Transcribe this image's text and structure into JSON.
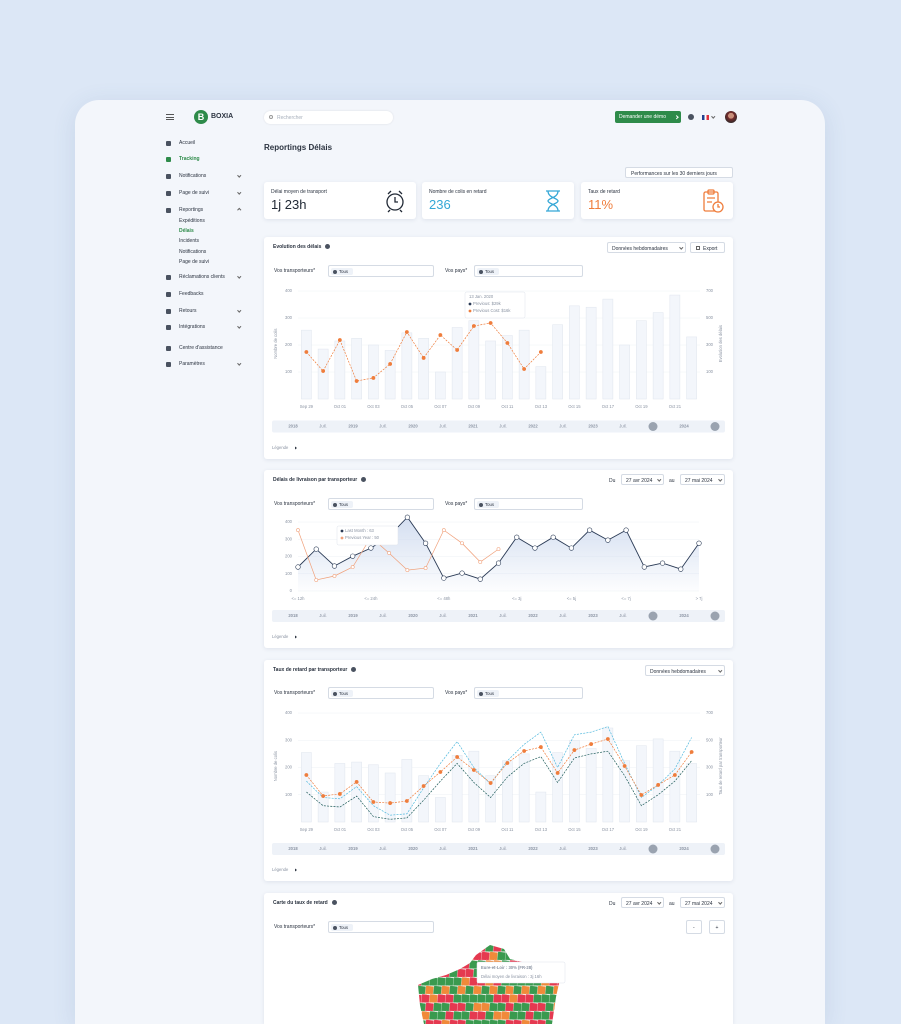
{
  "header": {
    "logo_letter": "B",
    "brand": "BOXIA",
    "search_placeholder": "Rechercher",
    "demo_button": "Demander une démo"
  },
  "sidebar": {
    "items": [
      "Accueil",
      "Tracking",
      "Notifications",
      "Page de suivi",
      "Reportings",
      "Réclamations clients",
      "Feedbacks",
      "Retours",
      "Intégrations",
      "Centre d'assistance",
      "Paramètres"
    ],
    "sub_items": [
      "Expéditions",
      "Délais",
      "Incidents",
      "Notifications",
      "Page de suivi"
    ]
  },
  "page": {
    "title": "Reportings Délais",
    "period": "Performances sur les 30 derniers jours"
  },
  "kpis": [
    {
      "label": "Délai moyen de transport",
      "value": "1j 23h",
      "color": "#222a36"
    },
    {
      "label": "Nombre de colis en retard",
      "value": "236",
      "color": "#35a7d6"
    },
    {
      "label": "Taux de retard",
      "value": "11%",
      "color": "#ef7d3c"
    }
  ],
  "filters": {
    "carriers_label": "Vos transporteurs*",
    "countries_label": "Vos pays*",
    "all": "Tous"
  },
  "controls": {
    "weekly": "Données hebdomadaires",
    "export": "Export",
    "legend": "Légende",
    "from": "Du",
    "to": "au",
    "date_from": "27 avr 2024",
    "date_to": "27 mai 2024"
  },
  "timeline": [
    "2018",
    "Juil.",
    "2019",
    "Juil.",
    "2020",
    "Juil.",
    "2021",
    "Juil.",
    "2022",
    "Juil.",
    "2023",
    "Juil.",
    "2024"
  ],
  "chart_data": [
    {
      "type": "bar",
      "title": "Evolution des délais",
      "y_label": "Nombre de colis",
      "y2_label": "Evolution des délais",
      "categories": [
        "Sep 29",
        null,
        "Oct 01",
        null,
        "Oct 03",
        null,
        "Oct 05",
        null,
        "Oct 07",
        null,
        "Oct 09",
        null,
        "Oct 11",
        null,
        "Oct 13",
        null,
        "Oct 15",
        null,
        "Oct 17",
        null,
        "Oct 19",
        null,
        "Oct 21",
        null
      ],
      "ylim": [
        0,
        410
      ],
      "yticks": [
        100,
        200,
        300,
        400
      ],
      "y2lim": [
        -100,
        720
      ],
      "y2ticks": [
        100,
        300,
        500,
        700
      ],
      "grid": true,
      "series": [
        {
          "color": "#f3f6fb",
          "values": [
            255,
            185,
            215,
            225,
            200,
            180,
            245,
            225,
            100,
            265,
            290,
            215,
            235,
            255,
            120,
            275,
            345,
            340,
            370,
            200,
            290,
            320,
            385,
            230
          ]
        },
        {
          "type": "line",
          "axis": "y2",
          "color": "#ef7d3c",
          "dashed": true,
          "markers": true,
          "values": [
            248,
            107,
            337,
            33,
            56,
            159,
            396,
            204,
            374,
            263,
            441,
            463,
            315,
            122,
            248,
            null,
            null,
            null,
            null,
            null,
            null,
            null,
            null,
            null
          ]
        }
      ],
      "tooltip": {
        "title": "13 Jan. 2020",
        "lines": [
          "Previous: $29k",
          "Previous Cost: $16k"
        ],
        "dot_colors": [
          "#2a3a55",
          "#ef7d3c"
        ]
      }
    },
    {
      "type": "line",
      "title": "Délais de livraison par transporteur",
      "categories": [
        "<= 12h",
        null,
        null,
        null,
        "<= 24h",
        null,
        null,
        null,
        "<= 48h",
        null,
        null,
        null,
        "<= 3j",
        null,
        null,
        "<= 5j",
        null,
        null,
        "<= 7j",
        null,
        null,
        null,
        "> 7j"
      ],
      "ylim": [
        0,
        450
      ],
      "yticks": [
        0,
        100,
        200,
        300,
        400
      ],
      "grid": true,
      "series": [
        {
          "color": "#2a3a55",
          "area_color": "#cfdbef",
          "markers": true,
          "values": [
            139,
            243,
            145,
            202,
            249,
            318,
            428,
            277,
            75,
            104,
            69,
            162,
            312,
            249,
            312,
            249,
            353,
            295,
            353,
            139,
            162,
            127,
            277
          ]
        },
        {
          "color": "#f0a07a",
          "markers": true,
          "values": [
            353,
            64,
            87,
            139,
            312,
            220,
            121,
            133,
            353,
            277,
            168,
            243,
            null,
            null,
            null,
            null,
            null,
            null,
            null,
            null,
            null,
            null,
            null
          ]
        }
      ],
      "tooltip": {
        "lines": [
          "Last Month : 63",
          "Previous Year : 50"
        ],
        "dot_colors": [
          "#2a3a55",
          "#f0a07a"
        ]
      }
    },
    {
      "type": "bar",
      "title": "Taux de retard par transporteur",
      "y_label": "Nombre de colis",
      "y2_label": "Taux de retard par transporteur",
      "categories": [
        "Sep 29",
        null,
        "Oct 01",
        null,
        "Oct 03",
        null,
        "Oct 05",
        null,
        "Oct 07",
        null,
        "Oct 09",
        null,
        "Oct 11",
        null,
        "Oct 13",
        null,
        "Oct 15",
        null,
        "Oct 17",
        null,
        "Oct 19",
        null,
        "Oct 21",
        null
      ],
      "ylim": [
        0,
        410
      ],
      "yticks": [
        100,
        200,
        300,
        400
      ],
      "y2lim": [
        -100,
        720
      ],
      "y2ticks": [
        100,
        300,
        500,
        700
      ],
      "grid": true,
      "series": [
        {
          "color": "#f3f6fb",
          "values": [
            255,
            110,
            215,
            220,
            210,
            180,
            230,
            170,
            90,
            245,
            260,
            170,
            225,
            250,
            110,
            255,
            300,
            270,
            345,
            225,
            280,
            305,
            260,
            215
          ]
        },
        {
          "type": "line",
          "axis": "y2",
          "color": "#4fb8dd",
          "dashed": true,
          "values": [
            200,
            80,
            70,
            160,
            20,
            -50,
            -40,
            150,
            330,
            490,
            300,
            180,
            350,
            470,
            560,
            300,
            540,
            560,
            600,
            330,
            80,
            170,
            290,
            520
          ]
        },
        {
          "type": "line",
          "axis": "y2",
          "color": "#1f5c5a",
          "dashed": true,
          "values": [
            120,
            20,
            10,
            90,
            -60,
            -80,
            -70,
            60,
            200,
            330,
            190,
            80,
            230,
            330,
            380,
            190,
            370,
            400,
            420,
            240,
            20,
            100,
            200,
            350
          ]
        },
        {
          "type": "line",
          "axis": "y2",
          "color": "#ef7d3c",
          "dashed": true,
          "markers": true,
          "values": [
            245,
            91,
            106,
            194,
            47,
            39,
            54,
            164,
            267,
            377,
            282,
            186,
            333,
            421,
            450,
            260,
            428,
            472,
            509,
            311,
            98,
            172,
            245,
            414
          ]
        }
      ]
    }
  ],
  "map": {
    "title": "Carte du taux de retard",
    "zoom_out": "-",
    "zoom_in": "+",
    "tooltip": [
      "Eure-et-Loir : 30% (FR-28)",
      "Délai moyen de livraison : 3j 16h"
    ]
  }
}
